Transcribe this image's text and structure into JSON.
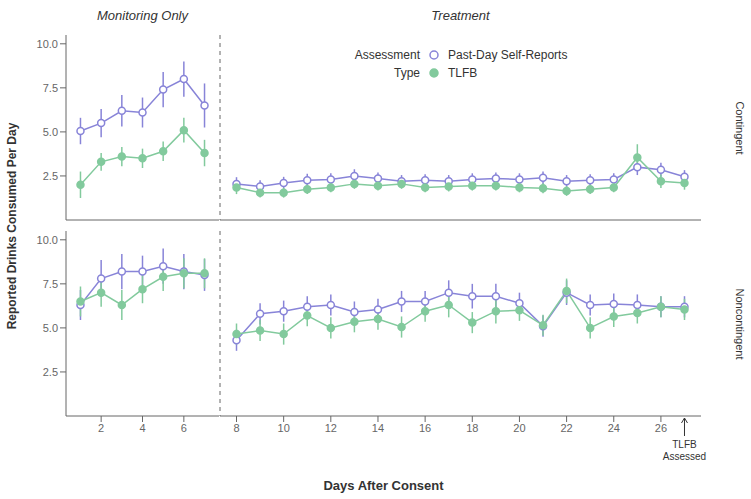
{
  "chart_data": {
    "type": "line",
    "xlabel": "Days After Consent",
    "ylabel": "Reported Drinks Consumed Per Day",
    "ylim": [
      0.0,
      10.5
    ],
    "yticks": [
      2.5,
      {
        "value": 5.0,
        "label": "5.0"
      },
      7.5,
      {
        "value": 10.0,
        "label": "10.0"
      }
    ],
    "legend_title": [
      "Assessment",
      "Type"
    ],
    "columns": [
      {
        "title": "Monitoring Only",
        "xlim": [
          0.3,
          7.7
        ],
        "xticks": [
          2,
          4,
          6
        ]
      },
      {
        "title": "Treatment",
        "xlim": [
          7.3,
          27.7
        ],
        "xticks": [
          8,
          10,
          12,
          14,
          16,
          18,
          20,
          22,
          24,
          26
        ]
      }
    ],
    "rows": [
      {
        "label": "Contingent",
        "panels": [
          {
            "x": [
              1,
              2,
              3,
              4,
              5,
              6,
              7
            ],
            "series": [
              {
                "name": "Past-Day Self-Reports",
                "color": "#8884d8",
                "marker": "open circle",
                "values": [
                  5.05,
                  5.5,
                  6.2,
                  6.1,
                  7.4,
                  8.0,
                  6.5
                ],
                "errors": [
                  0.75,
                  0.8,
                  0.9,
                  0.85,
                  1.0,
                  1.0,
                  1.25
                ]
              },
              {
                "name": "TLFB",
                "color": "#82ca9d",
                "marker": "filled circle",
                "values": [
                  2.0,
                  3.3,
                  3.6,
                  3.5,
                  3.9,
                  5.1,
                  3.8
                ],
                "errors": [
                  0.75,
                  0.5,
                  0.55,
                  0.55,
                  0.55,
                  0.7,
                  0.75
                ]
              }
            ]
          },
          {
            "x": [
              8,
              9,
              10,
              11,
              12,
              13,
              14,
              15,
              16,
              17,
              18,
              19,
              20,
              21,
              22,
              23,
              24,
              25,
              26,
              27
            ],
            "series": [
              {
                "name": "Past-Day Self-Reports",
                "color": "#8884d8",
                "marker": "open circle",
                "values": [
                  2.05,
                  1.9,
                  2.1,
                  2.25,
                  2.3,
                  2.5,
                  2.35,
                  2.2,
                  2.25,
                  2.2,
                  2.3,
                  2.35,
                  2.3,
                  2.4,
                  2.2,
                  2.25,
                  2.3,
                  3.0,
                  2.85,
                  2.45
                ],
                "errors": [
                  0.38,
                  0.35,
                  0.35,
                  0.38,
                  0.35,
                  0.38,
                  0.35,
                  0.35,
                  0.35,
                  0.35,
                  0.35,
                  0.35,
                  0.35,
                  0.35,
                  0.35,
                  0.35,
                  0.35,
                  0.45,
                  0.4,
                  0.38
                ]
              },
              {
                "name": "TLFB",
                "color": "#82ca9d",
                "marker": "filled circle",
                "values": [
                  1.85,
                  1.55,
                  1.55,
                  1.75,
                  1.85,
                  2.05,
                  1.95,
                  2.05,
                  1.85,
                  1.9,
                  1.95,
                  1.95,
                  1.85,
                  1.8,
                  1.65,
                  1.75,
                  1.85,
                  3.55,
                  2.2,
                  2.1
                ],
                "errors": [
                  0.38,
                  0.28,
                  0.28,
                  0.28,
                  0.28,
                  0.28,
                  0.28,
                  0.28,
                  0.28,
                  0.28,
                  0.28,
                  0.28,
                  0.28,
                  0.28,
                  0.28,
                  0.28,
                  0.28,
                  0.75,
                  0.38,
                  0.38
                ]
              }
            ]
          }
        ]
      },
      {
        "label": "Noncontingent",
        "panels": [
          {
            "x": [
              1,
              2,
              3,
              4,
              5,
              6,
              7
            ],
            "series": [
              {
                "name": "Past-Day Self-Reports",
                "color": "#8884d8",
                "marker": "open circle",
                "values": [
                  6.3,
                  7.8,
                  8.2,
                  8.2,
                  8.5,
                  8.2,
                  8.0
                ],
                "errors": [
                  0.85,
                  1.05,
                  1.0,
                  0.9,
                  1.0,
                  1.0,
                  0.9
                ]
              },
              {
                "name": "TLFB",
                "color": "#82ca9d",
                "marker": "filled circle",
                "values": [
                  6.5,
                  7.0,
                  6.3,
                  7.2,
                  7.9,
                  8.1,
                  8.1
                ],
                "errors": [
                  0.85,
                  0.8,
                  0.85,
                  0.8,
                  0.8,
                  0.85,
                  0.85
                ]
              }
            ]
          },
          {
            "x": [
              8,
              9,
              10,
              11,
              12,
              13,
              14,
              15,
              16,
              17,
              18,
              19,
              20,
              21,
              22,
              23,
              24,
              25,
              26,
              27
            ],
            "series": [
              {
                "name": "Past-Day Self-Reports",
                "color": "#8884d8",
                "marker": "open circle",
                "values": [
                  4.3,
                  5.8,
                  5.95,
                  6.2,
                  6.3,
                  5.9,
                  6.05,
                  6.5,
                  6.5,
                  7.0,
                  6.8,
                  6.8,
                  6.4,
                  5.1,
                  7.0,
                  6.3,
                  6.35,
                  6.3,
                  6.2,
                  6.2
                ],
                "errors": [
                  0.6,
                  0.6,
                  0.6,
                  0.6,
                  0.6,
                  0.6,
                  0.6,
                  0.6,
                  0.6,
                  0.7,
                  0.7,
                  0.7,
                  0.6,
                  0.6,
                  0.7,
                  0.6,
                  0.6,
                  0.6,
                  0.6,
                  0.6
                ]
              },
              {
                "name": "TLFB",
                "color": "#82ca9d",
                "marker": "filled circle",
                "values": [
                  4.65,
                  4.85,
                  4.65,
                  5.7,
                  5.0,
                  5.35,
                  5.5,
                  5.05,
                  5.95,
                  6.3,
                  5.3,
                  5.95,
                  6.0,
                  5.15,
                  7.1,
                  5.0,
                  5.65,
                  5.85,
                  6.2,
                  6.05
                ],
                "errors": [
                  0.6,
                  0.6,
                  0.6,
                  0.6,
                  0.6,
                  0.6,
                  0.6,
                  0.6,
                  0.6,
                  0.7,
                  0.6,
                  0.7,
                  0.6,
                  0.6,
                  0.7,
                  0.6,
                  0.6,
                  0.6,
                  0.6,
                  0.6
                ]
              }
            ]
          }
        ]
      }
    ],
    "annotations": [
      {
        "text": "TLFB\nAssessed",
        "x": 27
      }
    ]
  }
}
